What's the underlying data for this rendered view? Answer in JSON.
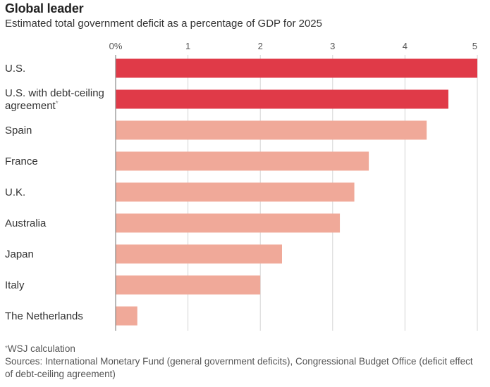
{
  "chart_data": {
    "type": "bar",
    "orientation": "horizontal",
    "title": "Global leader",
    "subtitle": "Estimated total government deficit as a percentage of GDP for 2025",
    "categories": [
      "U.S.",
      "U.S. with debt-ceiling agreement*",
      "Spain",
      "France",
      "U.K.",
      "Australia",
      "Japan",
      "Italy",
      "The Netherlands"
    ],
    "category_lines": [
      [
        "U.S."
      ],
      [
        "U.S. with debt-ceiling",
        "agreement"
      ],
      [
        "Spain"
      ],
      [
        "France"
      ],
      [
        "U.K."
      ],
      [
        "Australia"
      ],
      [
        "Japan"
      ],
      [
        "Italy"
      ],
      [
        "The Netherlands"
      ]
    ],
    "category_marks": [
      "",
      "*",
      "",
      "",
      "",
      "",
      "",
      "",
      ""
    ],
    "values": [
      5.0,
      4.6,
      4.3,
      3.5,
      3.3,
      3.1,
      2.3,
      2.0,
      0.3
    ],
    "highlight": [
      true,
      true,
      false,
      false,
      false,
      false,
      false,
      false,
      false
    ],
    "xlim": [
      0,
      5
    ],
    "ticks": [
      0,
      1,
      2,
      3,
      4,
      5
    ],
    "tick_labels": [
      "0%",
      "1",
      "2",
      "3",
      "4",
      "5"
    ],
    "grid": true,
    "colors": {
      "highlight": "#e03a48",
      "default": "#f0a999",
      "grid": "#d4d4d4",
      "axis": "#888888"
    }
  },
  "footer": {
    "note_mark": "*",
    "note": "WSJ calculation",
    "sources": "Sources: International Monetary Fund (general government deficits), Congressional Budget Office (deficit effect of debt-ceiling agreement)"
  }
}
